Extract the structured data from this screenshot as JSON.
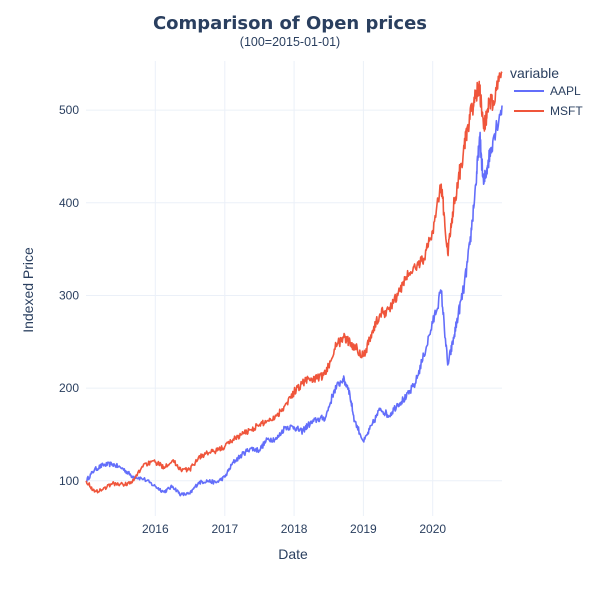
{
  "chart_data": {
    "type": "line",
    "title": "Comparison of Open prices",
    "subtitle": "(100=2015-01-01)",
    "xlabel": "Date",
    "ylabel": "Indexed Price",
    "xlim": [
      "2015-01-01",
      "2020-12-31"
    ],
    "ylim": [
      62,
      553
    ],
    "x_ticks": [
      "2016",
      "2017",
      "2018",
      "2019",
      "2020"
    ],
    "y_ticks": [
      100,
      200,
      300,
      400,
      500
    ],
    "grid": true,
    "legend": {
      "title": "variable",
      "position": "top-right"
    },
    "x": [
      "2015-01-02",
      "2015-02-15",
      "2015-04-01",
      "2015-05-20",
      "2015-07-15",
      "2015-09-01",
      "2015-11-01",
      "2016-01-01",
      "2016-02-15",
      "2016-04-01",
      "2016-05-15",
      "2016-07-01",
      "2016-08-15",
      "2016-10-01",
      "2016-11-15",
      "2017-01-01",
      "2017-02-15",
      "2017-04-01",
      "2017-05-15",
      "2017-07-01",
      "2017-08-15",
      "2017-10-01",
      "2017-11-15",
      "2018-01-01",
      "2018-02-10",
      "2018-03-15",
      "2018-05-01",
      "2018-06-15",
      "2018-08-01",
      "2018-09-15",
      "2018-10-15",
      "2018-11-15",
      "2019-01-03",
      "2019-02-15",
      "2019-04-01",
      "2019-05-15",
      "2019-07-01",
      "2019-08-15",
      "2019-10-01",
      "2019-11-15",
      "2020-01-01",
      "2020-02-15",
      "2020-03-20",
      "2020-04-15",
      "2020-05-15",
      "2020-06-15",
      "2020-07-15",
      "2020-08-15",
      "2020-09-05",
      "2020-09-25",
      "2020-10-15",
      "2020-11-15",
      "2020-12-31"
    ],
    "series": [
      {
        "name": "AAPL",
        "color": "#636efa",
        "values": [
          100,
          112,
          117,
          118,
          113,
          105,
          102,
          94,
          88,
          94,
          85,
          86,
          98,
          100,
          98,
          104,
          120,
          128,
          135,
          133,
          145,
          145,
          158,
          158,
          153,
          160,
          166,
          168,
          198,
          210,
          200,
          165,
          142,
          160,
          178,
          170,
          183,
          190,
          205,
          235,
          270,
          305,
          225,
          248,
          280,
          310,
          355,
          420,
          470,
          420,
          440,
          470,
          505
        ]
      },
      {
        "name": "MSFT",
        "color": "#ef553b",
        "values": [
          100,
          88,
          91,
          97,
          96,
          98,
          118,
          120,
          115,
          122,
          112,
          112,
          125,
          130,
          132,
          137,
          145,
          150,
          155,
          160,
          165,
          170,
          182,
          196,
          205,
          210,
          210,
          215,
          242,
          255,
          250,
          245,
          235,
          260,
          280,
          285,
          300,
          320,
          330,
          340,
          370,
          420,
          345,
          390,
          425,
          460,
          490,
          520,
          520,
          480,
          500,
          510,
          540
        ]
      }
    ]
  }
}
